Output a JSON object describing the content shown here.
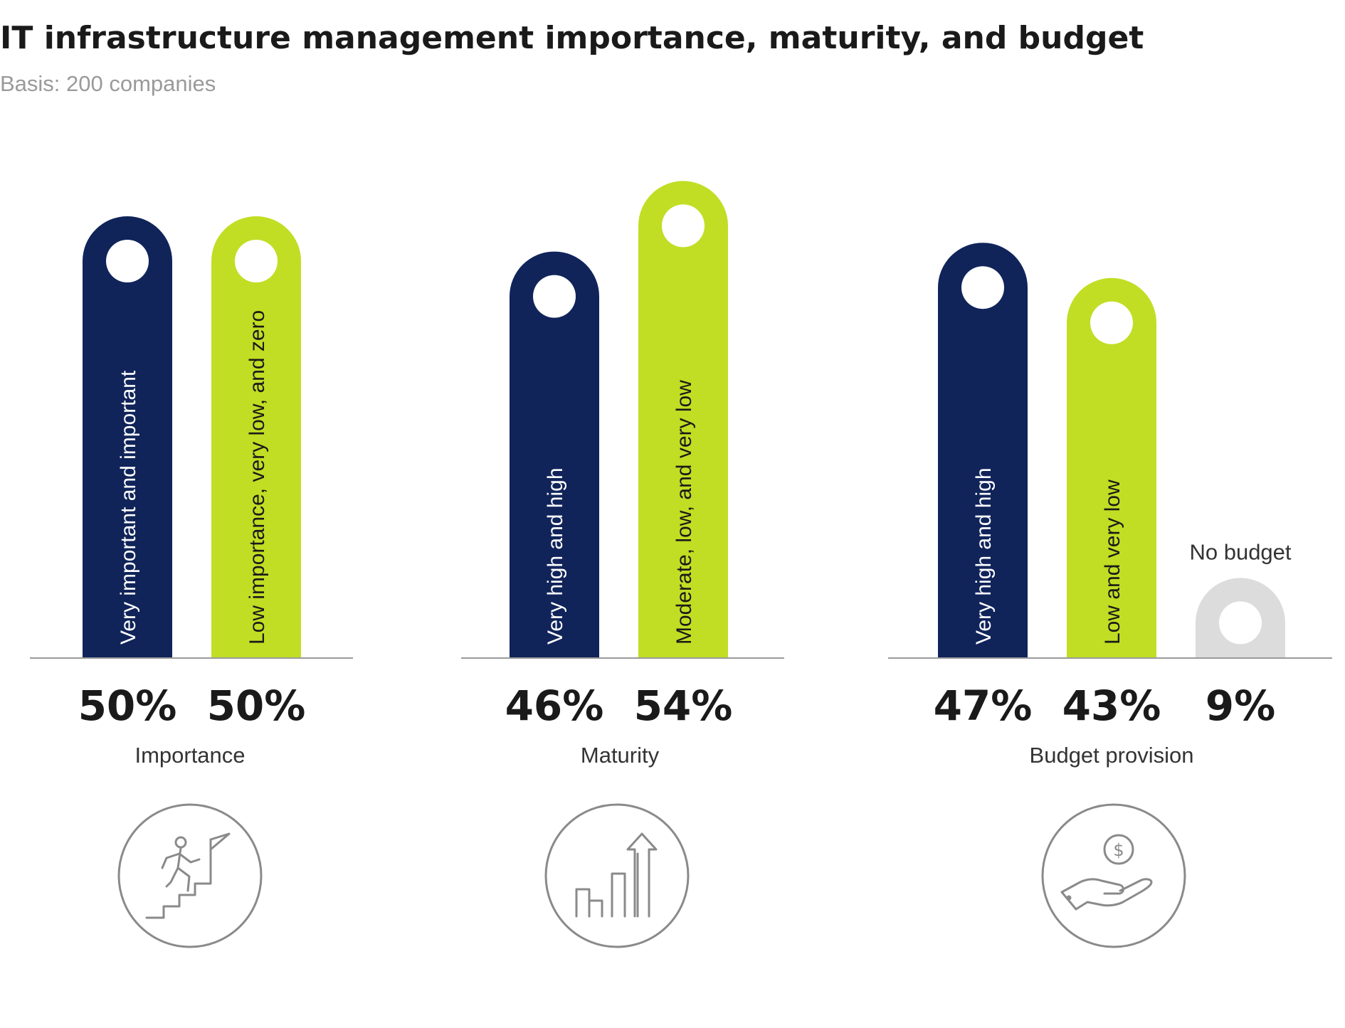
{
  "title": "IT infrastructure management importance, maturity, and budget",
  "subtitle": "Basis: 200 companies",
  "colors": {
    "navy": "#10245a",
    "lime": "#c1de24",
    "gray": "#dcdcdc",
    "text_light": "#ffffff",
    "text_dark": "#1a1a1a"
  },
  "chart_data": {
    "type": "bar",
    "title": "IT infrastructure management importance, maturity, and budget",
    "subtitle": "Basis: 200 companies",
    "groups": [
      {
        "name": "Importance",
        "icon": "climbing-stairs-flag-icon",
        "bars": [
          {
            "label": "Very important and important",
            "value": 50,
            "display": "50%",
            "color": "navy"
          },
          {
            "label": "Low importance, very low, and zero",
            "value": 50,
            "display": "50%",
            "color": "lime"
          }
        ]
      },
      {
        "name": "Maturity",
        "icon": "growth-chart-arrow-icon",
        "bars": [
          {
            "label": "Very high and high",
            "value": 46,
            "display": "46%",
            "color": "navy"
          },
          {
            "label": "Moderate, low, and very low",
            "value": 54,
            "display": "54%",
            "color": "lime"
          }
        ]
      },
      {
        "name": "Budget provision",
        "icon": "hand-coin-icon",
        "bars": [
          {
            "label": "Very high and high",
            "value": 47,
            "display": "47%",
            "color": "navy"
          },
          {
            "label": "Low and very low",
            "value": 43,
            "display": "43%",
            "color": "lime"
          },
          {
            "label": "No budget",
            "value": 9,
            "display": "9%",
            "color": "gray",
            "label_outside": true
          }
        ]
      }
    ],
    "unit": "%"
  }
}
